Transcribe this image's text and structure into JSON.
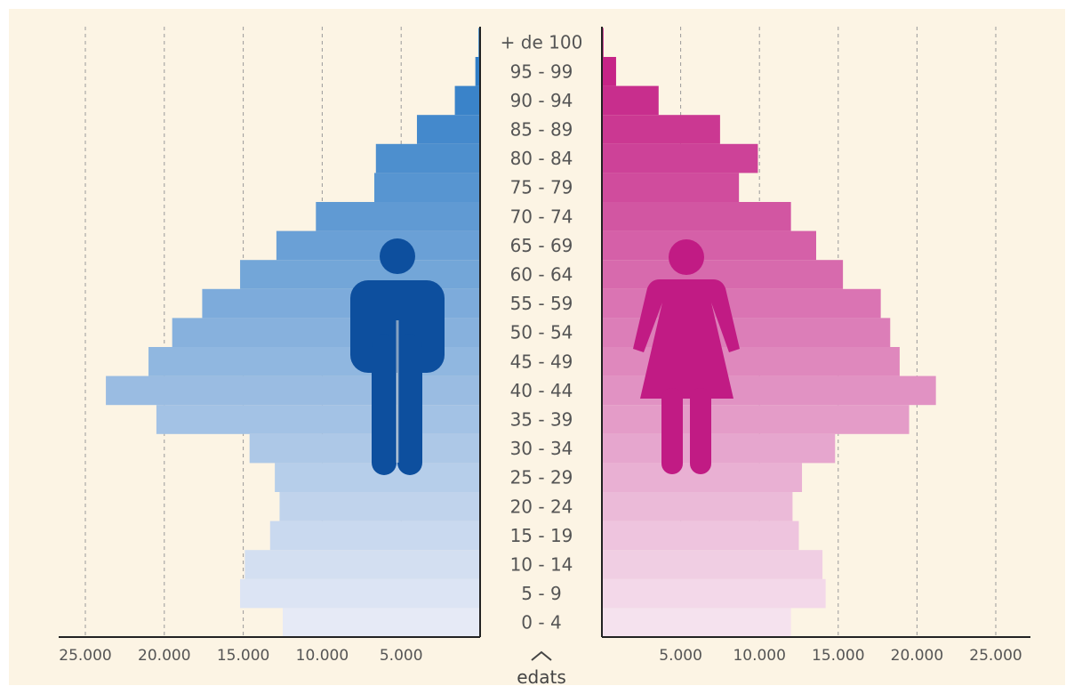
{
  "chart_data": {
    "type": "bar",
    "orientation": "horizontal-pyramid",
    "categories": [
      "0 - 4",
      "5 - 9",
      "10 - 14",
      "15 - 19",
      "20 - 24",
      "25 - 29",
      "30 - 34",
      "35 - 39",
      "40 - 44",
      "45 - 49",
      "50 - 54",
      "55 - 59",
      "60 - 64",
      "65 - 69",
      "70 - 74",
      "75 - 79",
      "80 - 84",
      "85 - 89",
      "90 - 94",
      "95 - 99",
      "+ de 100"
    ],
    "series": [
      {
        "values": [
          12500,
          15200,
          14900,
          13300,
          12700,
          13000,
          14600,
          20500,
          23700,
          21000,
          19500,
          17600,
          15200,
          12900,
          10400,
          6700,
          6600,
          4000,
          1600,
          300,
          100
        ]
      },
      {
        "values": [
          12000,
          14200,
          14000,
          12500,
          12100,
          12700,
          14800,
          19500,
          21200,
          18900,
          18300,
          17700,
          15300,
          13600,
          12000,
          8700,
          9900,
          7500,
          3600,
          900,
          100
        ]
      }
    ],
    "xlim": [
      0,
      25000
    ],
    "tick_values": [
      5000,
      10000,
      15000,
      20000,
      25000
    ],
    "tick_labels": [
      "5.000",
      "10.000",
      "15.000",
      "20.000",
      "25.000"
    ],
    "center_axis_label": "edats",
    "grid": "vertical dashed",
    "background_color": "#fcf4e4",
    "colors": {
      "left_bars_top": "#2778c4",
      "left_bars_bottom": "#e6eaf6",
      "right_bars_top": "#c31a82",
      "right_bars_bottom": "#f5e2ee",
      "left_icon": "#0d4f9e",
      "right_icon": "#c11b84"
    },
    "icons": {
      "left": "male-figure-icon",
      "right": "female-figure-icon"
    }
  }
}
